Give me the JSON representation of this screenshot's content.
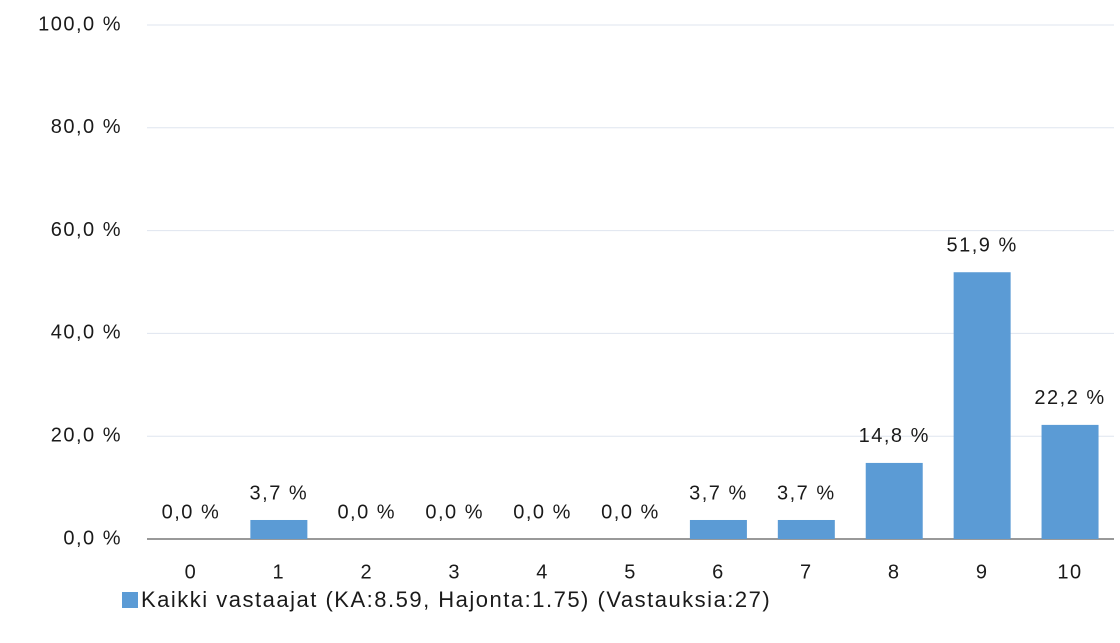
{
  "chart_data": {
    "type": "bar",
    "categories": [
      "0",
      "1",
      "2",
      "3",
      "4",
      "5",
      "6",
      "7",
      "8",
      "9",
      "10"
    ],
    "series": [
      {
        "name": "Kaikki vastaajat (KA:8.59, Hajonta:1.75) (Vastauksia:27)",
        "color": "#5b9bd5",
        "values": [
          0,
          3.7,
          0,
          0,
          0,
          0,
          3.7,
          3.7,
          14.8,
          51.9,
          22.2
        ],
        "value_labels": [
          "0,0 %",
          "3,7 %",
          "0,0 %",
          "0,0 %",
          "0,0 %",
          "0,0 %",
          "3,7 %",
          "3,7 %",
          "14,8 %",
          "51,9 %",
          "22,2 %"
        ]
      }
    ],
    "ylim": [
      0,
      100
    ],
    "yticks": [
      {
        "value": 0,
        "label": "0,0 %"
      },
      {
        "value": 20,
        "label": "20,0 %"
      },
      {
        "value": 40,
        "label": "40,0 %"
      },
      {
        "value": 60,
        "label": "60,0 %"
      },
      {
        "value": 80,
        "label": "80,0 %"
      },
      {
        "value": 100,
        "label": "100,0 %"
      }
    ],
    "grid": true
  }
}
